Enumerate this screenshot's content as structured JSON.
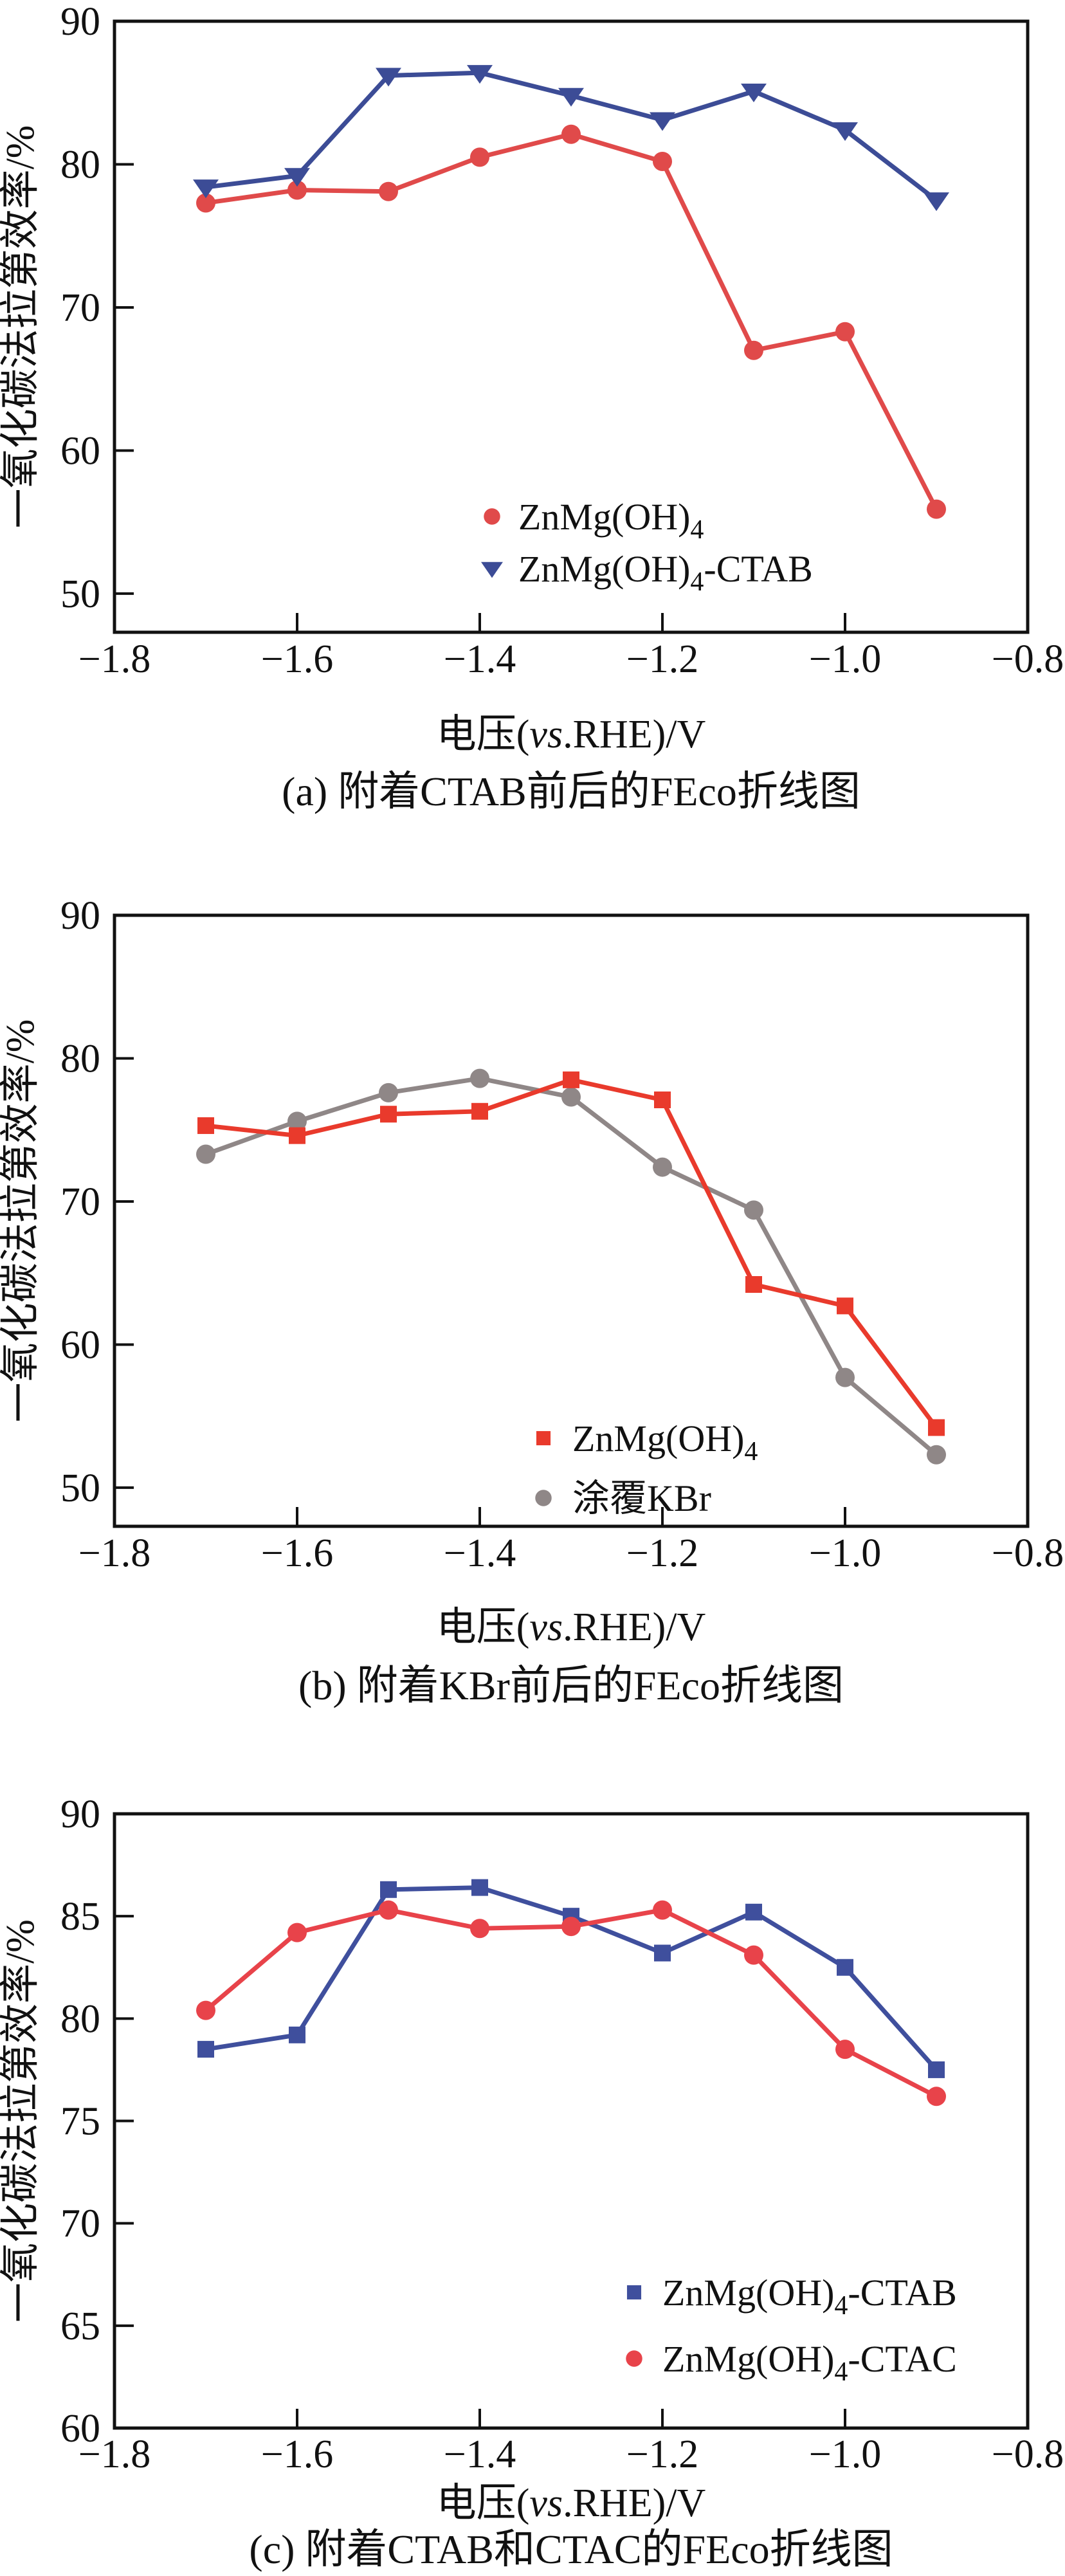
{
  "figure": {
    "background": "#ffffff",
    "axis_color": "#111111"
  },
  "chart_data": [
    {
      "id": "a",
      "type": "line",
      "title": "(a) 附着CTAB前后的FEco折线图",
      "xlabel": {
        "pre": "电压(",
        "italic": "vs",
        "post": ".RHE)/V"
      },
      "ylabel": "一氧化碳法拉第效率/%",
      "x": [
        -1.7,
        -1.6,
        -1.5,
        -1.4,
        -1.3,
        -1.2,
        -1.1,
        -1.0,
        -0.9
      ],
      "xlim": [
        -1.8,
        -0.8
      ],
      "xticks": [
        -1.8,
        -1.6,
        -1.4,
        -1.2,
        -1.0,
        -0.8
      ],
      "ylim": [
        47.3,
        90
      ],
      "yticks": [
        50,
        60,
        70,
        80,
        90
      ],
      "grid": false,
      "legend_position": "lower-center",
      "series": [
        {
          "label": {
            "main": "ZnMg(OH)",
            "sub": "4",
            "suffix": ""
          },
          "marker": "circle",
          "color": "#E04A4A",
          "values": [
            77.3,
            78.2,
            78.1,
            80.5,
            82.1,
            80.2,
            67.0,
            68.3,
            55.9
          ]
        },
        {
          "label": {
            "main": "ZnMg(OH)",
            "sub": "4",
            "suffix": "-CTAB"
          },
          "marker": "triangle-down",
          "color": "#3C4C96",
          "values": [
            78.4,
            79.2,
            86.2,
            86.4,
            84.8,
            83.1,
            85.1,
            82.4,
            77.5
          ]
        }
      ],
      "draw_order": [
        0,
        1
      ]
    },
    {
      "id": "b",
      "type": "line",
      "title": "(b) 附着KBr前后的FEco折线图",
      "xlabel": {
        "pre": "电压(",
        "italic": "vs",
        "post": ".RHE)/V"
      },
      "ylabel": "一氧化碳法拉第效率/%",
      "x": [
        -1.7,
        -1.6,
        -1.5,
        -1.4,
        -1.3,
        -1.2,
        -1.1,
        -1.0,
        -0.9
      ],
      "xlim": [
        -1.8,
        -0.8
      ],
      "xticks": [
        -1.8,
        -1.6,
        -1.4,
        -1.2,
        -1.0,
        -0.8
      ],
      "ylim": [
        47.3,
        90
      ],
      "yticks": [
        50,
        60,
        70,
        80,
        90
      ],
      "grid": false,
      "legend_position": "lower-center",
      "series": [
        {
          "label": {
            "main": "ZnMg(OH)",
            "sub": "4",
            "suffix": ""
          },
          "marker": "square",
          "color": "#E93A2C",
          "values": [
            75.3,
            74.6,
            76.1,
            76.3,
            78.5,
            77.1,
            64.2,
            62.7,
            54.2
          ]
        },
        {
          "label": {
            "main": "涂覆KBr",
            "sub": "",
            "suffix": ""
          },
          "marker": "circle",
          "color": "#8F8787",
          "values": [
            73.3,
            75.6,
            77.6,
            78.6,
            77.3,
            72.4,
            69.4,
            57.7,
            52.3
          ]
        }
      ],
      "draw_order": [
        1,
        0
      ]
    },
    {
      "id": "c",
      "type": "line",
      "title": "(c) 附着CTAB和CTAC的FEco折线图",
      "xlabel": {
        "pre": "电压(",
        "italic": "vs",
        "post": ".RHE)/V"
      },
      "ylabel": "一氧化碳法拉第效率/%",
      "x": [
        -1.7,
        -1.6,
        -1.5,
        -1.4,
        -1.3,
        -1.2,
        -1.1,
        -1.0,
        -0.9
      ],
      "xlim": [
        -1.8,
        -0.8
      ],
      "xticks": [
        -1.8,
        -1.6,
        -1.4,
        -1.2,
        -1.0,
        -0.8
      ],
      "ylim": [
        60,
        90
      ],
      "yticks": [
        60,
        65,
        70,
        75,
        80,
        85,
        90
      ],
      "grid": false,
      "legend_position": "lower-right",
      "series": [
        {
          "label": {
            "main": "ZnMg(OH)",
            "sub": "4",
            "suffix": "-CTAB"
          },
          "marker": "square",
          "color": "#3F4F9D",
          "values": [
            78.5,
            79.2,
            86.3,
            86.4,
            85.0,
            83.2,
            85.2,
            82.5,
            77.5
          ]
        },
        {
          "label": {
            "main": "ZnMg(OH)",
            "sub": "4",
            "suffix": "-CTAC"
          },
          "marker": "circle",
          "color": "#E8434A",
          "values": [
            80.4,
            84.2,
            85.3,
            84.4,
            84.5,
            85.3,
            83.1,
            78.5,
            76.2
          ]
        }
      ],
      "draw_order": [
        0,
        1
      ]
    }
  ]
}
